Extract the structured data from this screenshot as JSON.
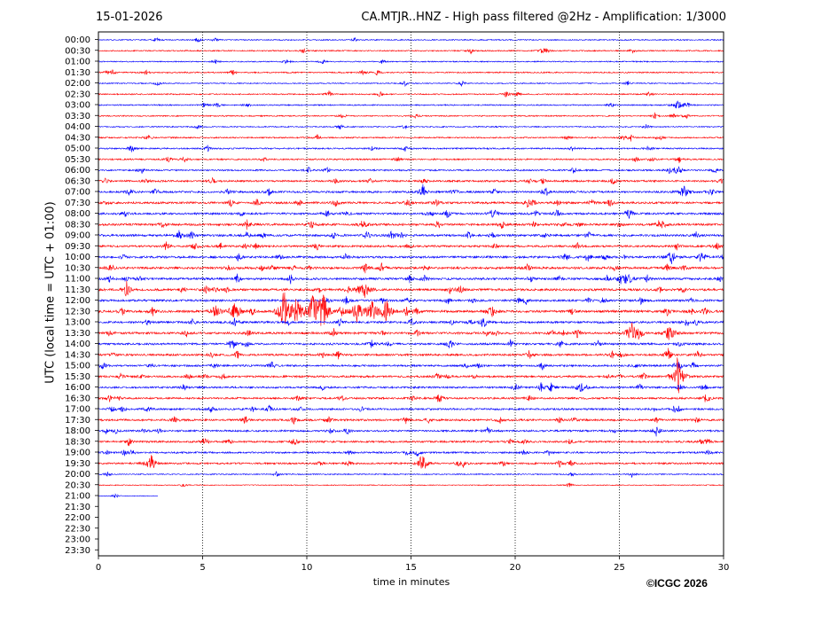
{
  "header": {
    "date": "15-01-2026",
    "title": "CA.MTJR..HNZ - High pass filtered @2Hz - Amplification: 1/3000"
  },
  "footer": {
    "copyright": "©ICGC 2026"
  },
  "chart_data": {
    "type": "line",
    "title": "CA.MTJR..HNZ - High pass filtered @2Hz - Amplification: 1/3000",
    "xlabel": "time in minutes",
    "ylabel": "UTC (local time = UTC + 01:00)",
    "xlim": [
      0,
      30
    ],
    "xticks": [
      0,
      5,
      10,
      15,
      20,
      25,
      30
    ],
    "vertical_gridlines_at": [
      5,
      10,
      15,
      20,
      25
    ],
    "grid": "vertical dotted",
    "legend": "none",
    "colors": {
      "odd_rows": "#ff0000",
      "even_rows": "#0000ff"
    },
    "rows": [
      "00:00",
      "00:30",
      "01:00",
      "01:30",
      "02:00",
      "02:30",
      "03:00",
      "03:30",
      "04:00",
      "04:30",
      "05:00",
      "05:30",
      "06:00",
      "06:30",
      "07:00",
      "07:30",
      "08:00",
      "08:30",
      "09:00",
      "09:30",
      "10:00",
      "10:30",
      "11:00",
      "11:30",
      "12:00",
      "12:30",
      "13:00",
      "13:30",
      "14:00",
      "14:30",
      "15:00",
      "15:30",
      "16:00",
      "16:30",
      "17:00",
      "17:30",
      "18:00",
      "18:30",
      "19:00",
      "19:30",
      "20:00",
      "20:30",
      "21:00",
      "21:30",
      "22:00",
      "22:30",
      "23:00",
      "23:30"
    ],
    "row_activity": [
      0.25,
      0.35,
      0.3,
      0.4,
      0.25,
      0.35,
      0.35,
      0.35,
      0.3,
      0.4,
      0.5,
      0.5,
      0.55,
      0.7,
      0.8,
      0.85,
      0.85,
      0.9,
      0.9,
      0.8,
      0.9,
      0.95,
      0.9,
      0.95,
      0.85,
      1.0,
      0.85,
      0.9,
      0.8,
      0.8,
      0.75,
      0.75,
      0.7,
      0.7,
      0.75,
      0.75,
      0.7,
      0.75,
      0.65,
      0.65,
      0.3,
      0.15,
      0.08,
      0,
      0,
      0,
      0,
      0
    ],
    "data_end_minutes": {
      "20:30": 30,
      "21:00": 2.85
    },
    "events": [
      {
        "row": "12:30",
        "t": 8.9,
        "amp": 3.0
      },
      {
        "row": "12:30",
        "t": 9.5,
        "amp": 2.2
      },
      {
        "row": "12:30",
        "t": 10.3,
        "amp": 2.6
      },
      {
        "row": "12:30",
        "t": 10.8,
        "amp": 2.4
      },
      {
        "row": "12:30",
        "t": 12.4,
        "amp": 1.5
      },
      {
        "row": "12:30",
        "t": 13.1,
        "amp": 1.4
      },
      {
        "row": "12:30",
        "t": 13.8,
        "amp": 1.6
      },
      {
        "row": "12:30",
        "t": 5.6,
        "amp": 0.8
      },
      {
        "row": "12:30",
        "t": 6.5,
        "amp": 0.9
      },
      {
        "row": "12:30",
        "t": 18.9,
        "amp": 0.7
      },
      {
        "row": "13:30",
        "t": 25.6,
        "amp": 1.4
      },
      {
        "row": "13:30",
        "t": 27.4,
        "amp": 1.1
      },
      {
        "row": "15:30",
        "t": 27.8,
        "amp": 2.8
      },
      {
        "row": "11:30",
        "t": 12.8,
        "amp": 1.0
      },
      {
        "row": "11:00",
        "t": 25.4,
        "amp": 0.8
      },
      {
        "row": "07:00",
        "t": 28.1,
        "amp": 0.9
      },
      {
        "row": "03:00",
        "t": 27.8,
        "amp": 0.6
      },
      {
        "row": "10:00",
        "t": 27.5,
        "amp": 0.8
      },
      {
        "row": "16:00",
        "t": 23.2,
        "amp": 0.7
      },
      {
        "row": "19:30",
        "t": 2.5,
        "amp": 0.8
      },
      {
        "row": "19:30",
        "t": 15.6,
        "amp": 0.8
      }
    ]
  }
}
